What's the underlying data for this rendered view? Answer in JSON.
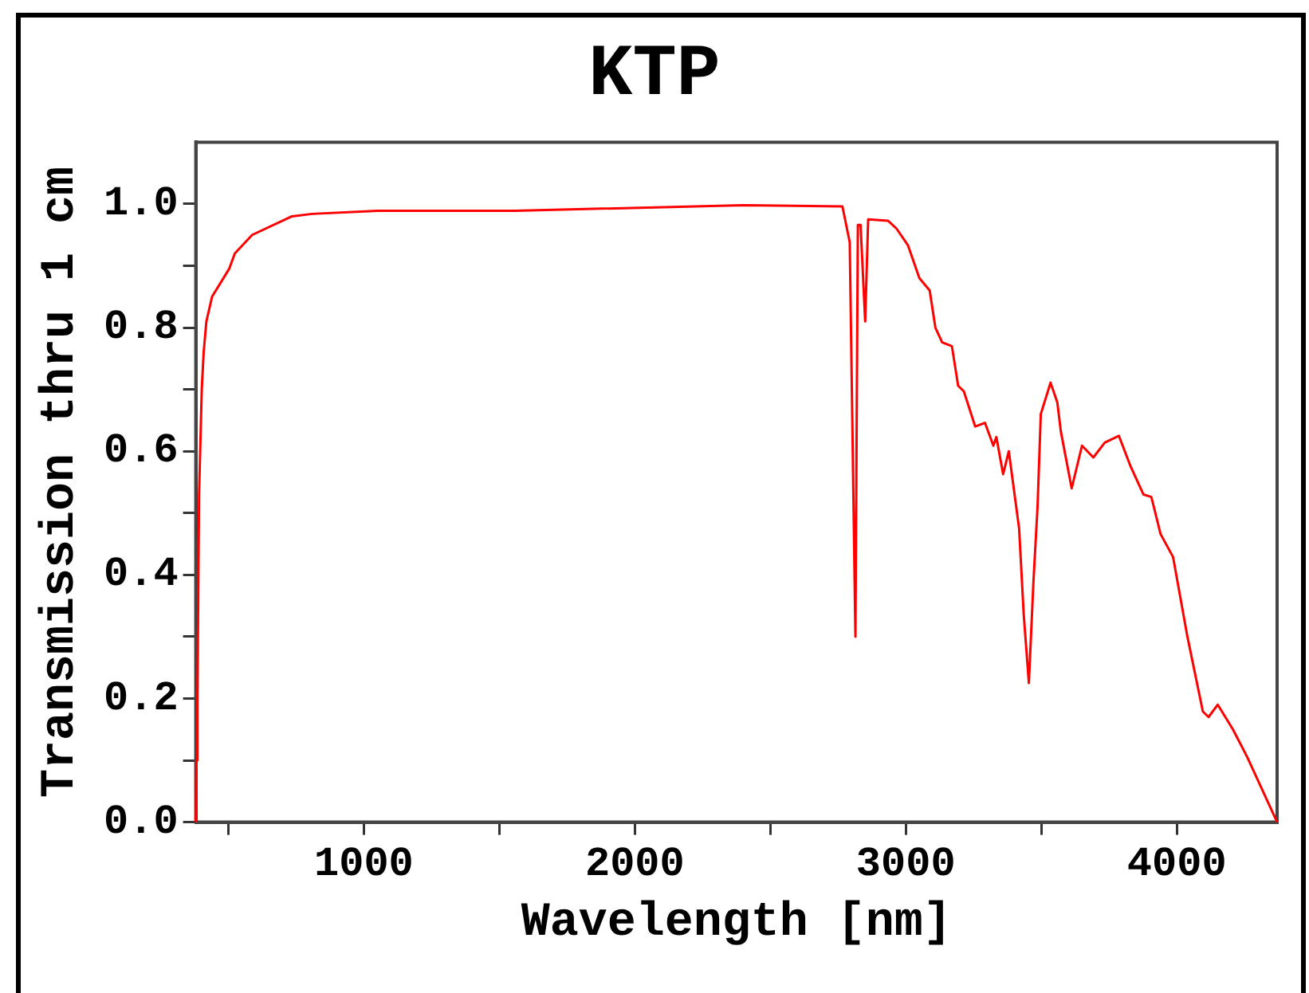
{
  "chart_data": {
    "type": "line",
    "title": "KTP",
    "xlabel": "Wavelength [nm]",
    "ylabel": "Transmission thru 1 cm",
    "x": [
      380,
      382,
      386,
      392,
      402,
      409,
      419,
      440,
      503,
      524,
      588,
      735,
      809,
      1051,
      1556,
      2400,
      2766,
      2793,
      2814,
      2823,
      2833,
      2850,
      2861,
      2934,
      2966,
      3008,
      3050,
      3088,
      3109,
      3134,
      3170,
      3193,
      3214,
      3256,
      3292,
      3323,
      3334,
      3359,
      3380,
      3418,
      3435,
      3454,
      3471,
      3486,
      3498,
      3534,
      3559,
      3572,
      3612,
      3650,
      3692,
      3734,
      3786,
      3828,
      3877,
      3906,
      3940,
      3986,
      4039,
      4096,
      4117,
      4151,
      4207,
      4260,
      4370
    ],
    "series": [
      {
        "color": "#ff0000",
        "values": [
          0.0,
          0.1,
          0.2,
          0.53,
          0.7,
          0.76,
          0.81,
          0.85,
          0.895,
          0.92,
          0.95,
          0.98,
          0.984,
          0.989,
          0.989,
          0.998,
          0.996,
          0.938,
          0.3,
          0.966,
          0.966,
          0.81,
          0.975,
          0.973,
          0.96,
          0.933,
          0.88,
          0.86,
          0.8,
          0.776,
          0.77,
          0.706,
          0.697,
          0.64,
          0.646,
          0.609,
          0.623,
          0.563,
          0.6,
          0.475,
          0.336,
          0.225,
          0.39,
          0.51,
          0.66,
          0.711,
          0.679,
          0.632,
          0.54,
          0.609,
          0.59,
          0.614,
          0.625,
          0.577,
          0.53,
          0.526,
          0.466,
          0.429,
          0.3,
          0.179,
          0.17,
          0.19,
          0.15,
          0.105,
          0.0
        ]
      }
    ],
    "xlim": [
      380,
      4370
    ],
    "ylim": [
      0,
      1.1
    ],
    "xticks": [
      {
        "value": 500,
        "label": null
      },
      1000,
      {
        "value": 1500,
        "label": null
      },
      2000,
      {
        "value": 2500,
        "label": null
      },
      3000,
      {
        "value": 3500,
        "label": null
      },
      4000
    ],
    "yticks": [
      {
        "value": 0,
        "label": "0.0"
      },
      {
        "value": 0.1,
        "label": null
      },
      {
        "value": 0.2,
        "label": "0.2"
      },
      {
        "value": 0.3,
        "label": null
      },
      {
        "value": 0.4,
        "label": "0.4"
      },
      {
        "value": 0.5,
        "label": null
      },
      {
        "value": 0.6,
        "label": "0.6"
      },
      {
        "value": 0.7,
        "label": null
      },
      {
        "value": 0.8,
        "label": "0.8"
      },
      {
        "value": 0.9,
        "label": null
      },
      {
        "value": 1,
        "label": "1.0"
      }
    ],
    "grid": false,
    "legend": false,
    "marker": "none",
    "line_style": "solid"
  }
}
